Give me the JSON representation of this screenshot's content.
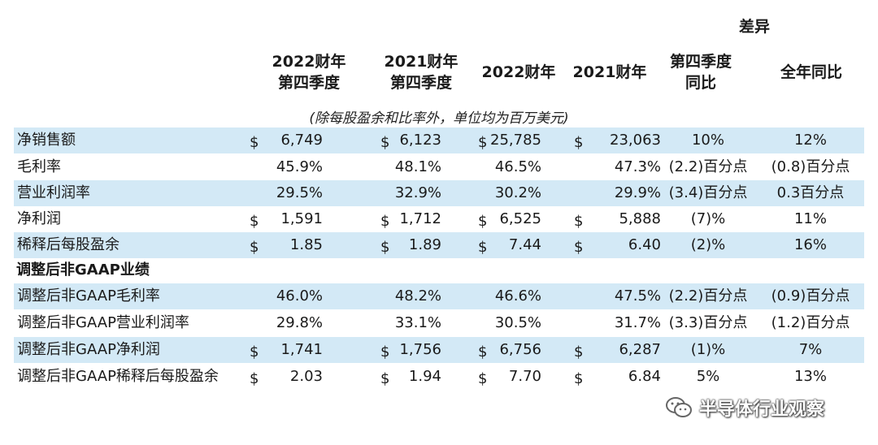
{
  "header": {
    "diff_group": "差异",
    "col1": "2022财年\n第四季度",
    "col2": "2021财年\n第四季度",
    "col3": "2022财年",
    "col4": "2021财年",
    "col5": "第四季度\n同比",
    "col6": "全年同比"
  },
  "unit_note": "(除每股盈余和比率外，单位均为百万美元)",
  "section_title": "调整后非GAAP业绩",
  "rows": [
    {
      "label": "净销售额",
      "d1": "$",
      "v1": "6,749",
      "d2": "$",
      "v2": "6,123",
      "d3": "$",
      "v3": "25,785",
      "d4": "$",
      "v4": "23,063",
      "v5": "10%",
      "v6": "12%"
    },
    {
      "label": "毛利率",
      "d1": "",
      "v1": "45.9%",
      "d2": "",
      "v2": "48.1%",
      "d3": "",
      "v3": "46.5%",
      "d4": "",
      "v4": "47.3%",
      "v5": "(2.2)百分点",
      "v6": "(0.8)百分点"
    },
    {
      "label": "营业利润率",
      "d1": "",
      "v1": "29.5%",
      "d2": "",
      "v2": "32.9%",
      "d3": "",
      "v3": "30.2%",
      "d4": "",
      "v4": "29.9%",
      "v5": "(3.4)百分点",
      "v6": "0.3百分点"
    },
    {
      "label": "净利润",
      "d1": "$",
      "v1": "1,591",
      "d2": "$",
      "v2": "1,712",
      "d3": "$",
      "v3": "6,525",
      "d4": "$",
      "v4": "5,888",
      "v5": "(7)%",
      "v6": "11%"
    },
    {
      "label": "稀释后每股盈余",
      "d1": "$",
      "v1": "1.85",
      "d2": "$",
      "v2": "1.89",
      "d3": "$",
      "v3": "7.44",
      "d4": "$",
      "v4": "6.40",
      "v5": "(2)%",
      "v6": "16%"
    },
    {
      "label": "调整后非GAAP毛利率",
      "d1": "",
      "v1": "46.0%",
      "d2": "",
      "v2": "48.2%",
      "d3": "",
      "v3": "46.6%",
      "d4": "",
      "v4": "47.5%",
      "v5": "(2.2)百分点",
      "v6": "(0.9)百分点"
    },
    {
      "label": "调整后非GAAP营业利润率",
      "d1": "",
      "v1": "29.8%",
      "d2": "",
      "v2": "33.1%",
      "d3": "",
      "v3": "30.5%",
      "d4": "",
      "v4": "31.7%",
      "v5": "(3.3)百分点",
      "v6": "(1.2)百分点"
    },
    {
      "label": "调整后非GAAP净利润",
      "d1": "$",
      "v1": "1,741",
      "d2": "$",
      "v2": "1,756",
      "d3": "$",
      "v3": "6,756",
      "d4": "$",
      "v4": "6,287",
      "v5": "(1)%",
      "v6": "7%"
    },
    {
      "label": "调整后非GAAP稀释后每股盈余",
      "d1": "$",
      "v1": "2.03",
      "d2": "$",
      "v2": "1.94",
      "d3": "$",
      "v3": "7.70",
      "d4": "$",
      "v4": "6.84",
      "v5": "5%",
      "v6": "13%"
    }
  ],
  "watermark": {
    "text": "半导体行业观察",
    "icon": "wechat-icon"
  },
  "colors": {
    "row_shade": "#d3e9f6",
    "text": "#1a1a1a"
  }
}
